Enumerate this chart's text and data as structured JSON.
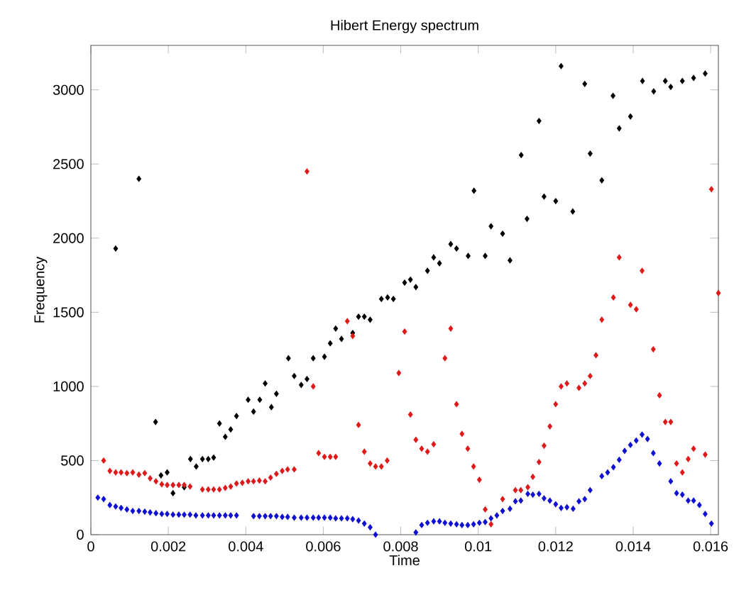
{
  "chart_data": {
    "type": "scatter",
    "title": "Hibert Energy spectrum",
    "xlabel": "Time",
    "ylabel": "Frequency",
    "xlim": [
      0,
      0.0162
    ],
    "ylim": [
      0,
      3300
    ],
    "xticks": [
      0,
      0.002,
      0.004,
      0.006,
      0.008,
      0.01,
      0.012,
      0.014,
      0.016
    ],
    "yticks": [
      0,
      500,
      1000,
      1500,
      2000,
      2500,
      3000
    ],
    "grid": false,
    "marker": "diamond",
    "series": [
      {
        "color": "#000000",
        "x": [
          0.00064,
          0.00124,
          0.00167,
          0.00181,
          0.00197,
          0.00212,
          0.00241,
          0.00257,
          0.00272,
          0.00288,
          0.00303,
          0.00317,
          0.00332,
          0.00347,
          0.00361,
          0.00376,
          0.00406,
          0.0042,
          0.00436,
          0.0045,
          0.00466,
          0.00479,
          0.0051,
          0.00525,
          0.00543,
          0.00558,
          0.00574,
          0.00603,
          0.00618,
          0.00632,
          0.00647,
          0.00676,
          0.00691,
          0.00706,
          0.00721,
          0.0075,
          0.00766,
          0.00781,
          0.0081,
          0.00825,
          0.00839,
          0.00869,
          0.00885,
          0.009,
          0.00929,
          0.00944,
          0.00974,
          0.00989,
          0.01018,
          0.01033,
          0.01063,
          0.01082,
          0.01111,
          0.01126,
          0.01157,
          0.0117,
          0.012,
          0.01214,
          0.01244,
          0.01275,
          0.01289,
          0.01319,
          0.01348,
          0.01364,
          0.01393,
          0.01424,
          0.01453,
          0.01483,
          0.01497,
          0.01527,
          0.01556,
          0.01586
        ],
        "values": [
          1930,
          2400,
          760,
          400,
          420,
          280,
          320,
          510,
          460,
          510,
          510,
          520,
          750,
          660,
          710,
          800,
          910,
          830,
          910,
          1020,
          860,
          950,
          1190,
          1070,
          1010,
          1050,
          1190,
          1200,
          1290,
          1390,
          1320,
          1360,
          1470,
          1470,
          1450,
          1590,
          1600,
          1590,
          1700,
          1720,
          1670,
          1780,
          1870,
          1830,
          1960,
          1930,
          1880,
          2320,
          1880,
          2080,
          2030,
          1850,
          2560,
          2130,
          2790,
          2280,
          2250,
          3160,
          2180,
          3040,
          2570,
          2390,
          2960,
          2740,
          2820,
          3060,
          2990,
          3060,
          3020,
          3060,
          3080,
          3110
        ]
      },
      {
        "color": "#dd1a1a",
        "x": [
          0.00033,
          0.00049,
          0.00064,
          0.00078,
          0.00093,
          0.00108,
          0.00124,
          0.00139,
          0.00153,
          0.00168,
          0.00183,
          0.00197,
          0.00212,
          0.00227,
          0.00241,
          0.00256,
          0.00288,
          0.00303,
          0.00317,
          0.00332,
          0.00347,
          0.00361,
          0.00376,
          0.00391,
          0.00406,
          0.0042,
          0.00435,
          0.0045,
          0.00464,
          0.00479,
          0.00494,
          0.00508,
          0.00525,
          0.00558,
          0.00574,
          0.00588,
          0.00603,
          0.00618,
          0.00632,
          0.00662,
          0.00676,
          0.00691,
          0.00706,
          0.00721,
          0.00735,
          0.0075,
          0.00765,
          0.00795,
          0.0081,
          0.00825,
          0.00839,
          0.00854,
          0.00869,
          0.00885,
          0.00914,
          0.00929,
          0.00944,
          0.00958,
          0.00973,
          0.00988,
          0.01003,
          0.01018,
          0.01033,
          0.01063,
          0.01096,
          0.0111,
          0.01128,
          0.01141,
          0.01157,
          0.0117,
          0.01185,
          0.012,
          0.01214,
          0.01229,
          0.0126,
          0.01275,
          0.01289,
          0.01304,
          0.01319,
          0.01349,
          0.01364,
          0.01393,
          0.01408,
          0.01423,
          0.01452,
          0.01468,
          0.01483,
          0.01497,
          0.01512,
          0.01527,
          0.01542,
          0.01556,
          0.01586,
          0.01602,
          0.0162
        ],
        "values": [
          500,
          430,
          420,
          420,
          415,
          420,
          405,
          415,
          380,
          360,
          340,
          335,
          335,
          335,
          335,
          325,
          305,
          305,
          305,
          305,
          315,
          325,
          345,
          350,
          360,
          360,
          365,
          360,
          385,
          410,
          430,
          440,
          440,
          2450,
          1000,
          550,
          525,
          525,
          525,
          1440,
          1340,
          740,
          560,
          480,
          460,
          460,
          500,
          1090,
          1370,
          810,
          640,
          580,
          560,
          610,
          1190,
          1390,
          880,
          680,
          580,
          460,
          370,
          170,
          70,
          240,
          300,
          300,
          320,
          390,
          490,
          600,
          730,
          880,
          1000,
          1020,
          990,
          1020,
          1070,
          1210,
          1450,
          1600,
          1870,
          1550,
          1520,
          1780,
          1250,
          940,
          760,
          760,
          480,
          420,
          510,
          580,
          540,
          2330,
          1630
        ]
      },
      {
        "color": "#1010d0",
        "x": [
          0.00018,
          0.00033,
          0.00049,
          0.00064,
          0.00078,
          0.00093,
          0.00108,
          0.00124,
          0.00139,
          0.00153,
          0.00168,
          0.00183,
          0.00197,
          0.00212,
          0.00227,
          0.00241,
          0.00256,
          0.00271,
          0.00288,
          0.00303,
          0.00317,
          0.00332,
          0.00347,
          0.00361,
          0.00376,
          0.0042,
          0.00435,
          0.0045,
          0.00464,
          0.00479,
          0.00494,
          0.00508,
          0.00525,
          0.00543,
          0.00558,
          0.00574,
          0.00588,
          0.00603,
          0.00618,
          0.00632,
          0.00647,
          0.00662,
          0.00676,
          0.00691,
          0.00706,
          0.00721,
          0.00735,
          0.00839,
          0.00854,
          0.00869,
          0.00885,
          0.009,
          0.00914,
          0.00929,
          0.00944,
          0.00958,
          0.00973,
          0.00988,
          0.01003,
          0.01018,
          0.01033,
          0.01048,
          0.01063,
          0.01082,
          0.01096,
          0.0111,
          0.01128,
          0.01141,
          0.01157,
          0.0117,
          0.01185,
          0.012,
          0.01214,
          0.01229,
          0.01245,
          0.0126,
          0.01275,
          0.01289,
          0.01319,
          0.01334,
          0.01349,
          0.01364,
          0.01378,
          0.01393,
          0.01408,
          0.01423,
          0.01437,
          0.01452,
          0.01468,
          0.01497,
          0.01512,
          0.01527,
          0.01542,
          0.01556,
          0.01571,
          0.01586,
          0.01602
        ],
        "values": [
          250,
          240,
          200,
          190,
          180,
          170,
          160,
          160,
          155,
          150,
          145,
          140,
          140,
          135,
          135,
          135,
          135,
          130,
          130,
          130,
          130,
          130,
          130,
          130,
          130,
          125,
          125,
          125,
          125,
          125,
          120,
          120,
          115,
          115,
          115,
          115,
          115,
          115,
          115,
          110,
          110,
          110,
          105,
          95,
          75,
          50,
          0,
          15,
          65,
          80,
          90,
          90,
          80,
          75,
          70,
          65,
          65,
          70,
          80,
          85,
          110,
          130,
          160,
          175,
          225,
          230,
          275,
          270,
          275,
          245,
          230,
          205,
          180,
          185,
          175,
          225,
          240,
          300,
          395,
          420,
          455,
          505,
          565,
          605,
          635,
          675,
          645,
          550,
          480,
          360,
          280,
          270,
          230,
          230,
          200,
          140,
          75
        ]
      }
    ]
  }
}
